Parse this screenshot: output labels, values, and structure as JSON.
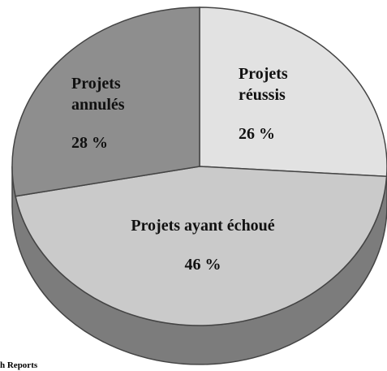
{
  "chart_data": {
    "type": "pie",
    "3d": true,
    "categories": [
      "Projets réussis",
      "Projets ayant échoué",
      "Projets annulés"
    ],
    "values": [
      26,
      46,
      28
    ],
    "value_labels": [
      "26 %",
      "46 %",
      "28 %"
    ],
    "colors": [
      "#e2e2e2",
      "#cacaca",
      "#8e8e8e"
    ],
    "side_color": "#7c7c7c",
    "source": "h Reports"
  }
}
